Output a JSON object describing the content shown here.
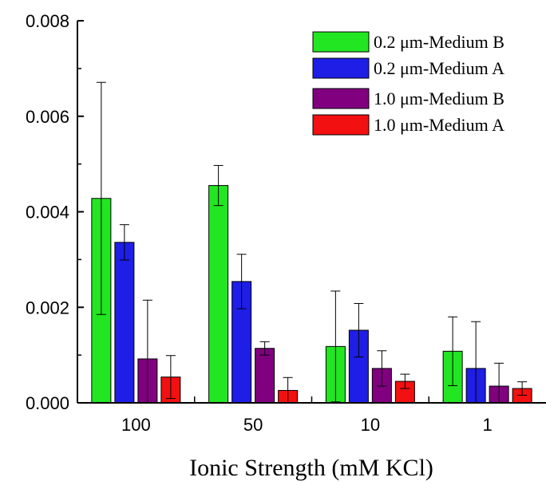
{
  "chart_data": {
    "type": "bar",
    "xlabel": "Ionic Strength (mM KCl)",
    "ylabel": "",
    "ylim": [
      0,
      0.008
    ],
    "yticks": [
      "0.000",
      "0.002",
      "0.004",
      "0.006",
      "0.008"
    ],
    "categories": [
      "100",
      "50",
      "10",
      "1"
    ],
    "legend_position": "top-right",
    "series": [
      {
        "name": "0.2 μm-Medium B",
        "color": "#22e622",
        "values": [
          0.00428,
          0.00455,
          0.00118,
          0.00108
        ],
        "errors": [
          0.00243,
          0.00042,
          0.00116,
          0.00072
        ]
      },
      {
        "name": "0.2 μm-Medium A",
        "color": "#1e1ee6",
        "values": [
          0.00336,
          0.00254,
          0.00152,
          0.00072
        ],
        "errors": [
          0.00037,
          0.00057,
          0.00056,
          0.00098
        ]
      },
      {
        "name": "1.0 μm-Medium B",
        "color": "#800080",
        "values": [
          0.00092,
          0.00114,
          0.00072,
          0.00035
        ],
        "errors": [
          0.00123,
          0.00014,
          0.00037,
          0.00048
        ]
      },
      {
        "name": "1.0 μm-Medium A",
        "color": "#f21010",
        "values": [
          0.00054,
          0.00026,
          0.00045,
          0.0003
        ],
        "errors": [
          0.00045,
          0.00027,
          0.00015,
          0.00014
        ]
      }
    ]
  }
}
